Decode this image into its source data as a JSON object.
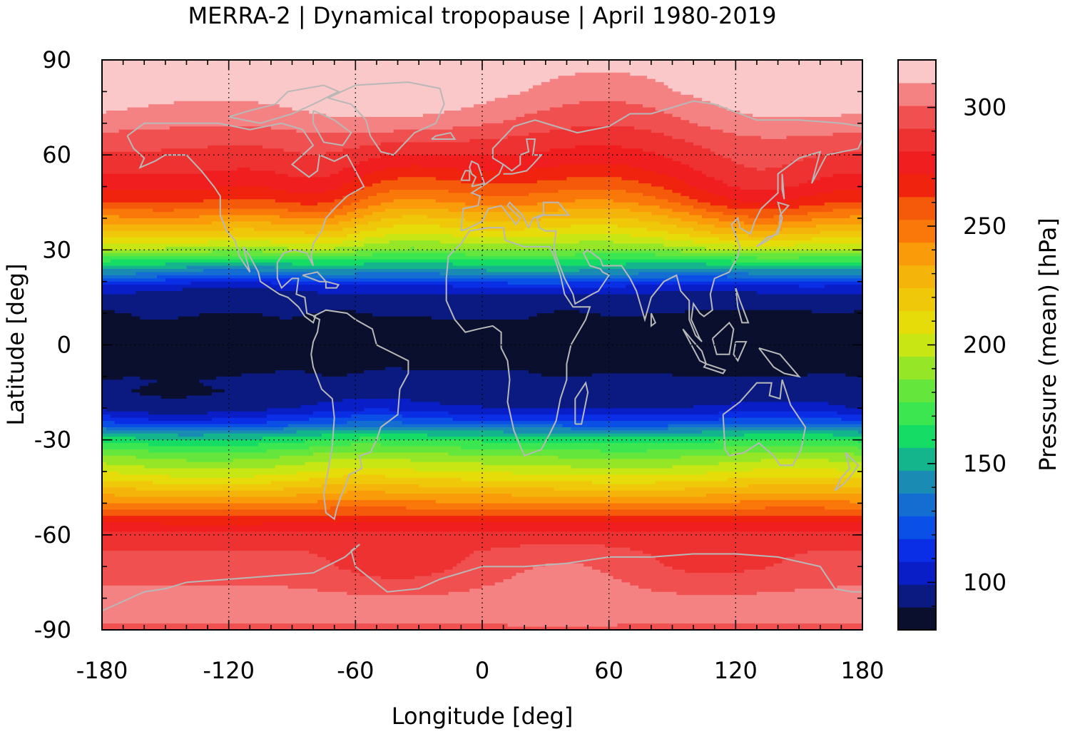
{
  "chart_data": {
    "type": "heatmap",
    "title": "MERRA-2 | Dynamical tropopause | April 1980-2019",
    "xlabel": "Longitude [deg]",
    "ylabel": "Latitude [deg]",
    "xlim": [
      -180,
      180
    ],
    "ylim": [
      -90,
      90
    ],
    "xticks": [
      -180,
      -120,
      -60,
      0,
      60,
      120,
      180
    ],
    "yticks": [
      90,
      60,
      30,
      0,
      -30,
      -60,
      -90
    ],
    "xtick_labels": [
      "-180",
      "-120",
      "-60",
      "0",
      "60",
      "120",
      "180"
    ],
    "ytick_labels": [
      "90",
      "60",
      "30",
      "0",
      "-30",
      "-60",
      "-90"
    ],
    "grid": true,
    "colorbar": {
      "label": "Pressure (mean) [hPa]",
      "range": [
        80,
        320
      ],
      "ticks": [
        100,
        150,
        200,
        250,
        300
      ],
      "tick_labels": [
        "100",
        "150",
        "200",
        "250",
        "300"
      ],
      "colors": [
        "#0a0f2e",
        "#0a1a80",
        "#0a1ec8",
        "#0a2ee6",
        "#0a50e6",
        "#146ed2",
        "#1a8cb4",
        "#14b48c",
        "#14dc64",
        "#3ce650",
        "#64e63c",
        "#96e628",
        "#c8e614",
        "#e6dc0a",
        "#f0c80a",
        "#f5b40a",
        "#fa9c0a",
        "#fa780a",
        "#f55a0a",
        "#f0230f",
        "#f01e1e",
        "#ee3232",
        "#f05050",
        "#f58282",
        "#fac8c8"
      ]
    },
    "zonal_profile_hpa": {
      "lat": [
        -90,
        -80,
        -70,
        -65,
        -60,
        -55,
        -50,
        -45,
        -40,
        -35,
        -30,
        -27,
        -25,
        -22,
        -20,
        -15,
        -10,
        0,
        10,
        15,
        18,
        20,
        22,
        25,
        28,
        30,
        35,
        40,
        45,
        50,
        55,
        60,
        65,
        70,
        80,
        90
      ],
      "pressure": [
        300,
        305,
        295,
        292,
        285,
        268,
        245,
        225,
        205,
        188,
        165,
        145,
        125,
        110,
        100,
        92,
        90,
        88,
        90,
        95,
        105,
        118,
        135,
        155,
        175,
        190,
        215,
        235,
        255,
        268,
        278,
        285,
        292,
        300,
        312,
        315
      ]
    },
    "coastlines": "gray outlines"
  }
}
